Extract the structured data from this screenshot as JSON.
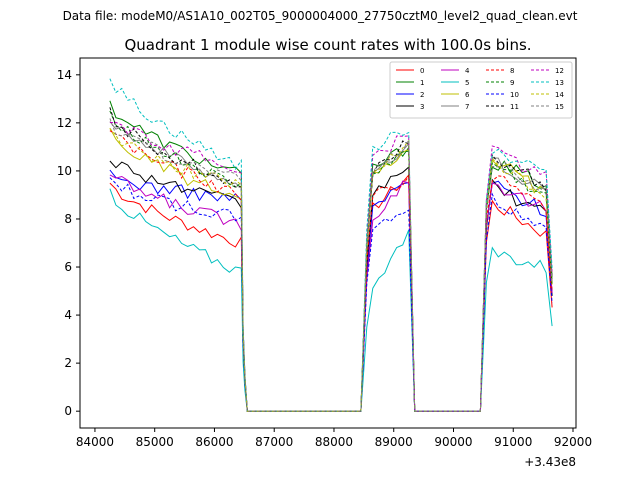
{
  "header": {
    "data_file": "Data file: modeM0/AS1A10_002T05_9000004000_27750cztM0_level2_quad_clean.evt"
  },
  "chart_data": {
    "type": "line",
    "title": "Quadrant 1 module wise count rates with 100.0s bins.",
    "xlabel": "",
    "ylabel": "",
    "x_offset_label": "+3.43e8",
    "xlim": [
      83750,
      92050
    ],
    "ylim": [
      -0.7,
      14.7
    ],
    "x_ticks": [
      84000,
      85000,
      86000,
      87000,
      88000,
      89000,
      90000,
      91000,
      92000
    ],
    "x_tick_labels": [
      "84000",
      "85000",
      "86000",
      "87000",
      "88000",
      "89000",
      "90000",
      "91000",
      "92000"
    ],
    "y_ticks": [
      0,
      2,
      4,
      6,
      8,
      10,
      12,
      14
    ],
    "y_tick_labels": [
      "0",
      "2",
      "4",
      "6",
      "8",
      "10",
      "12",
      "14"
    ],
    "grid": false,
    "legend_position": "top-right",
    "segments": [
      {
        "start": 84250,
        "end": 86450,
        "zero_end": 86550
      },
      {
        "start": 88550,
        "end": 89250,
        "zero_end": 89350
      },
      {
        "start": 90550,
        "end": 91650,
        "zero_end": 91650
      }
    ],
    "series": [
      {
        "name": "0",
        "color": "#ff0000",
        "dash": "solid",
        "levels": [
          9.5,
          7.0,
          8.2,
          9.8,
          8.8,
          7.2
        ]
      },
      {
        "name": "1",
        "color": "#008000",
        "dash": "solid",
        "levels": [
          12.8,
          9.8,
          10.0,
          11.0,
          10.5,
          9.3
        ]
      },
      {
        "name": "2",
        "color": "#0000ff",
        "dash": "solid",
        "levels": [
          9.8,
          8.8,
          8.3,
          9.6,
          9.6,
          8.2
        ]
      },
      {
        "name": "3",
        "color": "#000000",
        "dash": "solid",
        "levels": [
          10.6,
          8.6,
          8.8,
          10.3,
          9.5,
          8.0
        ]
      },
      {
        "name": "4",
        "color": "#bf00bf",
        "dash": "solid",
        "levels": [
          9.9,
          7.8,
          7.8,
          9.7,
          9.7,
          8.2
        ]
      },
      {
        "name": "5",
        "color": "#00bfbf",
        "dash": "solid",
        "levels": [
          9.2,
          5.8,
          5.0,
          7.3,
          6.7,
          5.9
        ]
      },
      {
        "name": "6",
        "color": "#bfbf00",
        "dash": "solid",
        "levels": [
          11.6,
          8.8,
          9.6,
          10.7,
          10.8,
          8.8
        ]
      },
      {
        "name": "7",
        "color": "#808080",
        "dash": "solid",
        "levels": [
          12.3,
          9.4,
          9.6,
          11.0,
          10.6,
          9.0
        ]
      },
      {
        "name": "8",
        "color": "#ff0000",
        "dash": "dashed",
        "levels": [
          11.8,
          9.0,
          8.8,
          9.7,
          10.0,
          8.3
        ]
      },
      {
        "name": "9",
        "color": "#008000",
        "dash": "dashed",
        "levels": [
          12.5,
          9.3,
          9.8,
          10.8,
          10.5,
          8.7
        ]
      },
      {
        "name": "10",
        "color": "#0000ff",
        "dash": "dashed",
        "levels": [
          9.6,
          8.0,
          7.6,
          8.4,
          8.9,
          7.5
        ]
      },
      {
        "name": "11",
        "color": "#000000",
        "dash": "dashed",
        "levels": [
          12.4,
          9.4,
          9.9,
          11.2,
          10.9,
          9.2
        ]
      },
      {
        "name": "12",
        "color": "#bf00bf",
        "dash": "dashed",
        "levels": [
          12.2,
          10.1,
          10.3,
          11.6,
          11.0,
          9.6
        ]
      },
      {
        "name": "13",
        "color": "#00bfbf",
        "dash": "dashed",
        "levels": [
          13.9,
          10.2,
          10.8,
          11.8,
          11.0,
          9.9
        ]
      },
      {
        "name": "14",
        "color": "#bfbf00",
        "dash": "dashed",
        "levels": [
          11.7,
          9.3,
          9.8,
          11.0,
          10.6,
          8.8
        ]
      },
      {
        "name": "15",
        "color": "#808080",
        "dash": "dashed",
        "levels": [
          12.0,
          9.6,
          9.9,
          11.1,
          10.6,
          9.0
        ]
      }
    ]
  }
}
